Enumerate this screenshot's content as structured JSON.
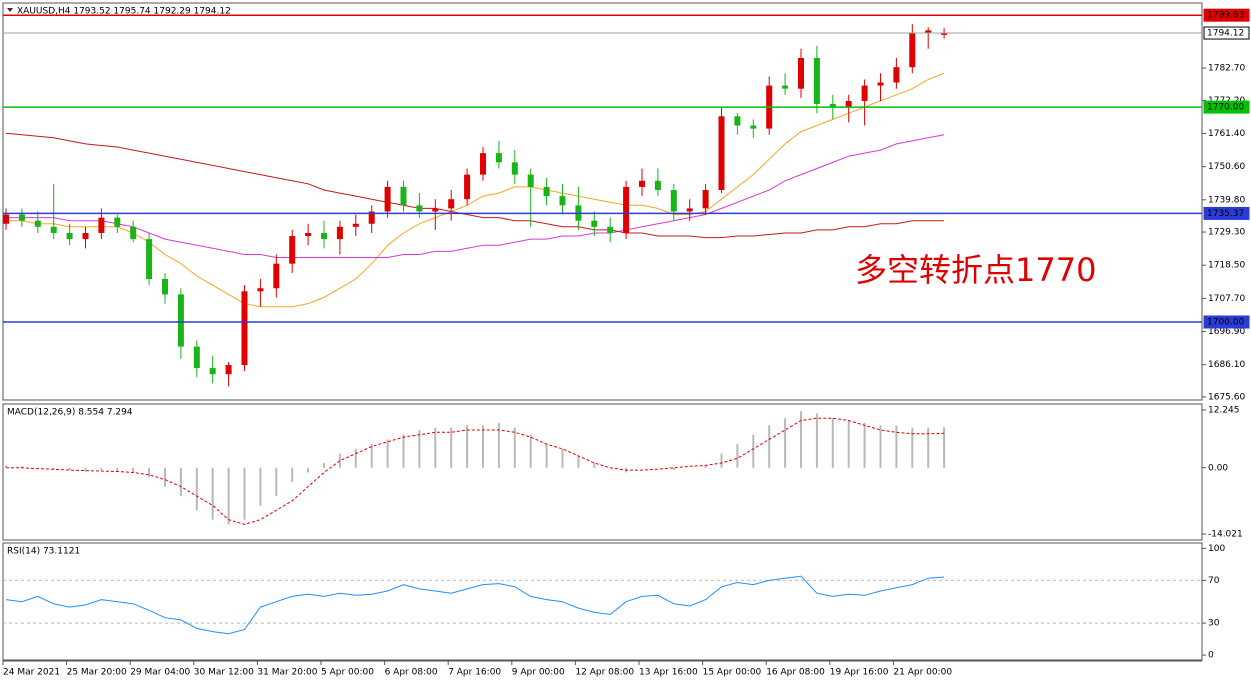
{
  "chart_data": [
    {
      "type": "candlestick",
      "title": "XAUUSD,H4  1793.52 1795.74 1792.29 1794.12",
      "annotation": "多空转折点1770",
      "up_color": "#e00000",
      "down_color": "#18b418",
      "categories": [
        "24 Mar 2021",
        null,
        null,
        null,
        "25 Mar 20:00",
        null,
        null,
        null,
        "29 Mar 04:00",
        null,
        null,
        null,
        "30 Mar 12:00",
        null,
        null,
        null,
        "31 Mar 20:00",
        null,
        null,
        null,
        "5 Apr 00:00",
        null,
        null,
        null,
        "6 Apr 08:00",
        null,
        null,
        null,
        "7 Apr 16:00",
        null,
        null,
        null,
        "9 Apr 00:00",
        null,
        null,
        null,
        "12 Apr 08:00",
        null,
        null,
        null,
        "13 Apr 16:00",
        null,
        null,
        null,
        "15 Apr 00:00",
        null,
        null,
        null,
        "16 Apr 08:00",
        null,
        null,
        null,
        "19 Apr 16:00",
        null,
        null,
        null,
        "21 Apr 00:00",
        null,
        null,
        null
      ],
      "ohlc": [
        [
          1732,
          1737,
          1730,
          1735
        ],
        [
          1735,
          1737,
          1731,
          1733
        ],
        [
          1733,
          1736,
          1729,
          1731
        ],
        [
          1731,
          1745,
          1727,
          1729
        ],
        [
          1729,
          1732,
          1725,
          1727
        ],
        [
          1727,
          1731,
          1724,
          1729
        ],
        [
          1729,
          1737,
          1727,
          1734
        ],
        [
          1734,
          1735,
          1729,
          1731
        ],
        [
          1731,
          1733,
          1726,
          1727
        ],
        [
          1727,
          1729,
          1712,
          1714
        ],
        [
          1714,
          1716,
          1706,
          1709
        ],
        [
          1709,
          1711,
          1688,
          1692
        ],
        [
          1692,
          1694,
          1682,
          1685
        ],
        [
          1685,
          1689,
          1680,
          1683
        ],
        [
          1683,
          1687,
          1679,
          1686
        ],
        [
          1686,
          1712,
          1684,
          1710
        ],
        [
          1710,
          1714,
          1705,
          1711
        ],
        [
          1711,
          1722,
          1708,
          1719
        ],
        [
          1719,
          1730,
          1716,
          1728
        ],
        [
          1728,
          1732,
          1725,
          1729
        ],
        [
          1729,
          1733,
          1724,
          1727
        ],
        [
          1727,
          1733,
          1722,
          1731
        ],
        [
          1731,
          1735,
          1728,
          1732
        ],
        [
          1732,
          1738,
          1729,
          1736
        ],
        [
          1736,
          1746,
          1734,
          1744
        ],
        [
          1744,
          1746,
          1736,
          1738
        ],
        [
          1738,
          1742,
          1734,
          1736
        ],
        [
          1736,
          1740,
          1730,
          1737
        ],
        [
          1737,
          1743,
          1733,
          1740
        ],
        [
          1740,
          1750,
          1738,
          1748
        ],
        [
          1748,
          1757,
          1746,
          1755
        ],
        [
          1755,
          1759,
          1750,
          1752
        ],
        [
          1752,
          1756,
          1745,
          1748
        ],
        [
          1748,
          1750,
          1731,
          1744
        ],
        [
          1744,
          1747,
          1738,
          1741
        ],
        [
          1741,
          1745,
          1735,
          1738
        ],
        [
          1738,
          1744,
          1730,
          1733
        ],
        [
          1733,
          1736,
          1728,
          1731
        ],
        [
          1731,
          1734,
          1726,
          1729
        ],
        [
          1729,
          1746,
          1727,
          1744
        ],
        [
          1744,
          1750,
          1741,
          1746
        ],
        [
          1746,
          1750,
          1741,
          1743
        ],
        [
          1743,
          1745,
          1733,
          1736
        ],
        [
          1736,
          1740,
          1733,
          1737
        ],
        [
          1737,
          1745,
          1735,
          1743
        ],
        [
          1743,
          1770,
          1742,
          1767
        ],
        [
          1767,
          1768,
          1761,
          1764
        ],
        [
          1764,
          1766,
          1760,
          1763
        ],
        [
          1763,
          1780,
          1761,
          1777
        ],
        [
          1777,
          1781,
          1774,
          1776
        ],
        [
          1776,
          1789,
          1773,
          1786
        ],
        [
          1786,
          1790,
          1768,
          1771
        ],
        [
          1771,
          1774,
          1766,
          1770
        ],
        [
          1770,
          1774,
          1765,
          1772
        ],
        [
          1772,
          1779,
          1764,
          1777
        ],
        [
          1777,
          1781,
          1772,
          1778
        ],
        [
          1778,
          1786,
          1776,
          1783
        ],
        [
          1783,
          1797,
          1781,
          1794
        ],
        [
          1794,
          1796,
          1789,
          1795
        ],
        [
          1793.52,
          1795.74,
          1792.29,
          1794.12
        ]
      ],
      "series": [
        {
          "color": "#f5a623",
          "values": [
            1733,
            1733,
            1732,
            1732,
            1731,
            1731,
            1731,
            1731,
            1729,
            1726,
            1722,
            1719,
            1715,
            1712,
            1709,
            1706,
            1705,
            1705,
            1705,
            1706,
            1708,
            1711,
            1714,
            1719,
            1725,
            1729,
            1732,
            1734,
            1736,
            1738,
            1741,
            1742,
            1744,
            1744,
            1743,
            1742,
            1741,
            1740,
            1739,
            1738,
            1738,
            1737,
            1735,
            1735,
            1736,
            1740,
            1744,
            1748,
            1753,
            1758,
            1762,
            1764,
            1766,
            1768,
            1770,
            1772,
            1774,
            1776,
            1779,
            1781
          ]
        },
        {
          "color": "#d63bd6",
          "values": [
            1734,
            1734,
            1734,
            1734,
            1733,
            1733,
            1733,
            1732,
            1731,
            1729,
            1727,
            1726,
            1725,
            1724,
            1723,
            1722,
            1722,
            1721,
            1721,
            1721,
            1721,
            1721,
            1721,
            1721,
            1721,
            1722,
            1722,
            1723,
            1723,
            1724,
            1725,
            1725,
            1726,
            1727,
            1727,
            1728,
            1728,
            1729,
            1729,
            1730,
            1731,
            1732,
            1733,
            1734,
            1735,
            1737,
            1739,
            1741,
            1743,
            1746,
            1748,
            1750,
            1752,
            1754,
            1755,
            1756,
            1758,
            1759,
            1760,
            1761
          ]
        },
        {
          "color": "#c41a1a",
          "values": [
            1761.5,
            1761,
            1760.5,
            1760,
            1759,
            1758,
            1757.5,
            1757,
            1756,
            1755,
            1754,
            1753,
            1752,
            1751,
            1750,
            1749,
            1748,
            1747,
            1746,
            1745,
            1743,
            1742,
            1741,
            1740,
            1739,
            1738,
            1737,
            1737,
            1736,
            1735,
            1734,
            1734,
            1733,
            1733,
            1732,
            1731,
            1731,
            1730,
            1730,
            1729,
            1729,
            1728,
            1728,
            1728,
            1727.5,
            1727.5,
            1728,
            1728,
            1728.5,
            1729,
            1729,
            1730,
            1730,
            1731,
            1731,
            1732,
            1732,
            1733,
            1733,
            1733
          ]
        }
      ],
      "levels": [
        {
          "value": 1799.93,
          "color": "#e00000"
        },
        {
          "value": 1794.12,
          "color": "#a0a0a0"
        },
        {
          "value": 1770,
          "label": "1770.00",
          "color": "#00c000"
        },
        {
          "value": 1735.37,
          "color": "#2b3bd8"
        },
        {
          "value": 1700,
          "label": "1700.00",
          "color": "#2b3bd8"
        }
      ],
      "ylim": [
        1674.6,
        1803.9
      ],
      "yticks": [
        {
          "value": 1782.7,
          "label": "1782.70"
        },
        {
          "value": 1772.2,
          "label": "1772.20"
        },
        {
          "value": 1761.4,
          "label": "1761.40"
        },
        {
          "value": 1750.6,
          "label": "1750.60"
        },
        {
          "value": 1739.8,
          "label": "1739.80"
        },
        {
          "value": 1729.3,
          "label": "1729.30"
        },
        {
          "value": 1718.5,
          "label": "1718.50"
        },
        {
          "value": 1707.7,
          "label": "1707.70"
        },
        {
          "value": 1696.9,
          "label": "1696.90"
        },
        {
          "value": 1686.1,
          "label": "1686.10"
        },
        {
          "value": 1675.6,
          "label": "1675.60"
        }
      ]
    },
    {
      "type": "macd",
      "title": "MACD(12,26,9) 8.554 7.294",
      "histogram": {
        "color": "#b8b8b8",
        "values": [
          0.5,
          0.3,
          0,
          -0.3,
          -0.5,
          -0.8,
          -0.5,
          -0.7,
          -1,
          -2,
          -4,
          -6,
          -9,
          -11,
          -12,
          -11,
          -8,
          -6,
          -3,
          -1,
          1,
          3,
          4,
          5,
          6,
          7,
          8,
          8.5,
          8.5,
          9,
          9,
          9.5,
          8.5,
          7,
          5,
          4,
          2.5,
          1,
          0,
          -1,
          0,
          0,
          -0.5,
          0,
          0.5,
          3,
          5,
          7,
          9,
          10.5,
          12,
          11.5,
          10.5,
          10,
          9.5,
          9,
          9,
          8.5,
          8.5,
          8.554
        ]
      },
      "signal": {
        "color": "#e00000",
        "values": [
          0,
          0,
          -0.2,
          -0.3,
          -0.5,
          -0.6,
          -0.7,
          -0.8,
          -1,
          -1.5,
          -2.5,
          -4,
          -6,
          -8,
          -11,
          -12,
          -11,
          -9,
          -7,
          -4,
          -1,
          1.5,
          3,
          4.5,
          5.5,
          6.5,
          7,
          7.5,
          7.5,
          8,
          8,
          8,
          7.5,
          6.5,
          5,
          4,
          2.5,
          1,
          0,
          -0.5,
          -0.5,
          -0.3,
          0,
          0.3,
          0.5,
          1,
          2,
          4,
          6,
          8,
          10,
          10.5,
          10.5,
          10,
          9,
          8,
          7.5,
          7.2,
          7.2,
          7.294
        ]
      },
      "ylim": [
        -15.3,
        13.5
      ],
      "yticks": [
        12.245,
        {
          "value": 0,
          "label": "0.00"
        },
        -14.021
      ]
    },
    {
      "type": "rsi",
      "title": "RSI(14) 73.1121",
      "line": {
        "color": "#1e90ff",
        "values": [
          52,
          50,
          55,
          48,
          45,
          47,
          52,
          50,
          48,
          42,
          35,
          33,
          25,
          22,
          20,
          24,
          45,
          50,
          55,
          57,
          55,
          58,
          56,
          57,
          60,
          66,
          62,
          60,
          58,
          62,
          66,
          67,
          64,
          55,
          52,
          50,
          44,
          40,
          38,
          50,
          55,
          56,
          48,
          46,
          52,
          64,
          68,
          66,
          70,
          72,
          74,
          58,
          55,
          57,
          56,
          60,
          63,
          66,
          72,
          73.1121
        ]
      },
      "levels": [
        70,
        30
      ],
      "ylim": [
        -4.6,
        105
      ],
      "yticks": [
        100,
        70,
        30,
        0
      ]
    }
  ]
}
